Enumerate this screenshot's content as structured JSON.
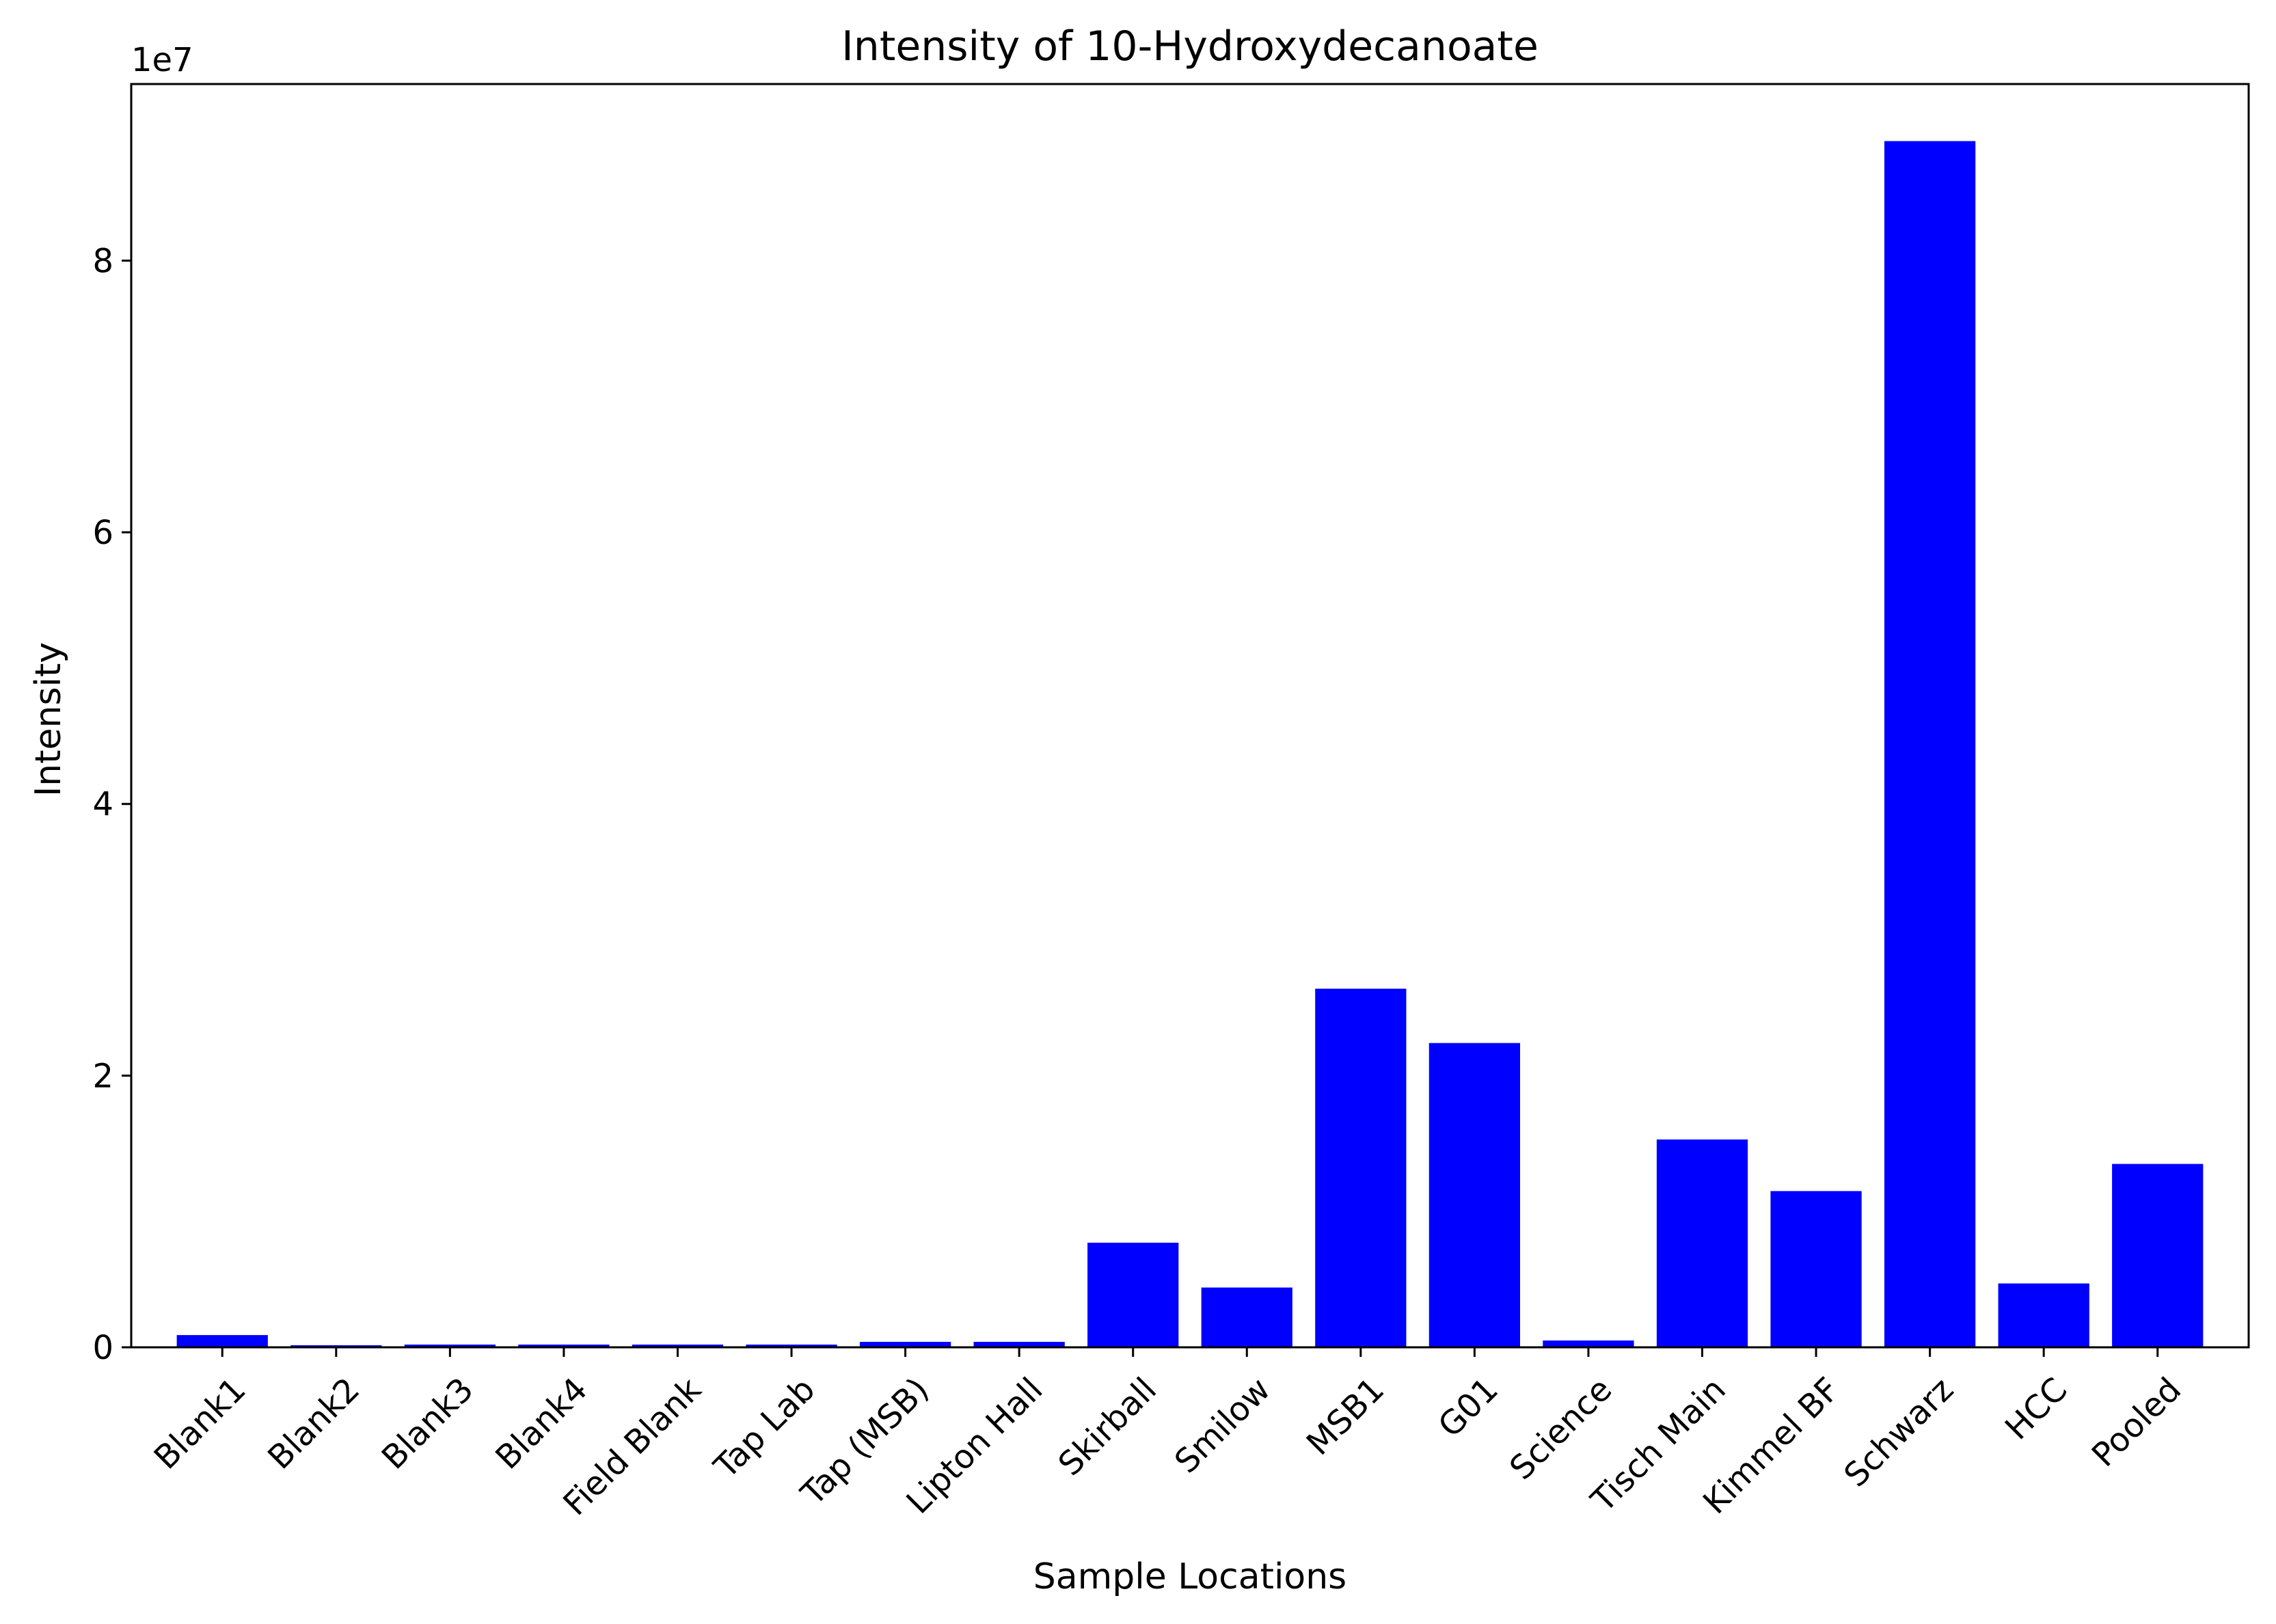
{
  "chart_data": {
    "type": "bar",
    "title": "Intensity of 10-Hydroxydecanoate",
    "xlabel": "Sample Locations",
    "ylabel": "Intensity",
    "y_offset_text": "1e7",
    "y_multiplier": 10000000,
    "ylim": [
      0,
      93000000
    ],
    "yticks": [
      0,
      20000000,
      40000000,
      60000000,
      80000000
    ],
    "ytick_labels": [
      "0",
      "2",
      "4",
      "6",
      "8"
    ],
    "grid": false,
    "bar_color": "#0000ff",
    "categories": [
      "Blank1",
      "Blank2",
      "Blank3",
      "Blank4",
      "Field Blank",
      "Tap Lab",
      "Tap (MSB)",
      "Lipton Hall",
      "Skirball",
      "Smilow",
      "MSB1",
      "G01",
      "Science",
      "Tisch Main",
      "Kimmel BF",
      "Schwarz",
      "HCC",
      "Pooled"
    ],
    "values": [
      900000,
      150000,
      200000,
      200000,
      200000,
      200000,
      400000,
      400000,
      7700000,
      4400000,
      26400000,
      22400000,
      500000,
      15300000,
      11500000,
      88800000,
      4700000,
      13500000
    ]
  }
}
